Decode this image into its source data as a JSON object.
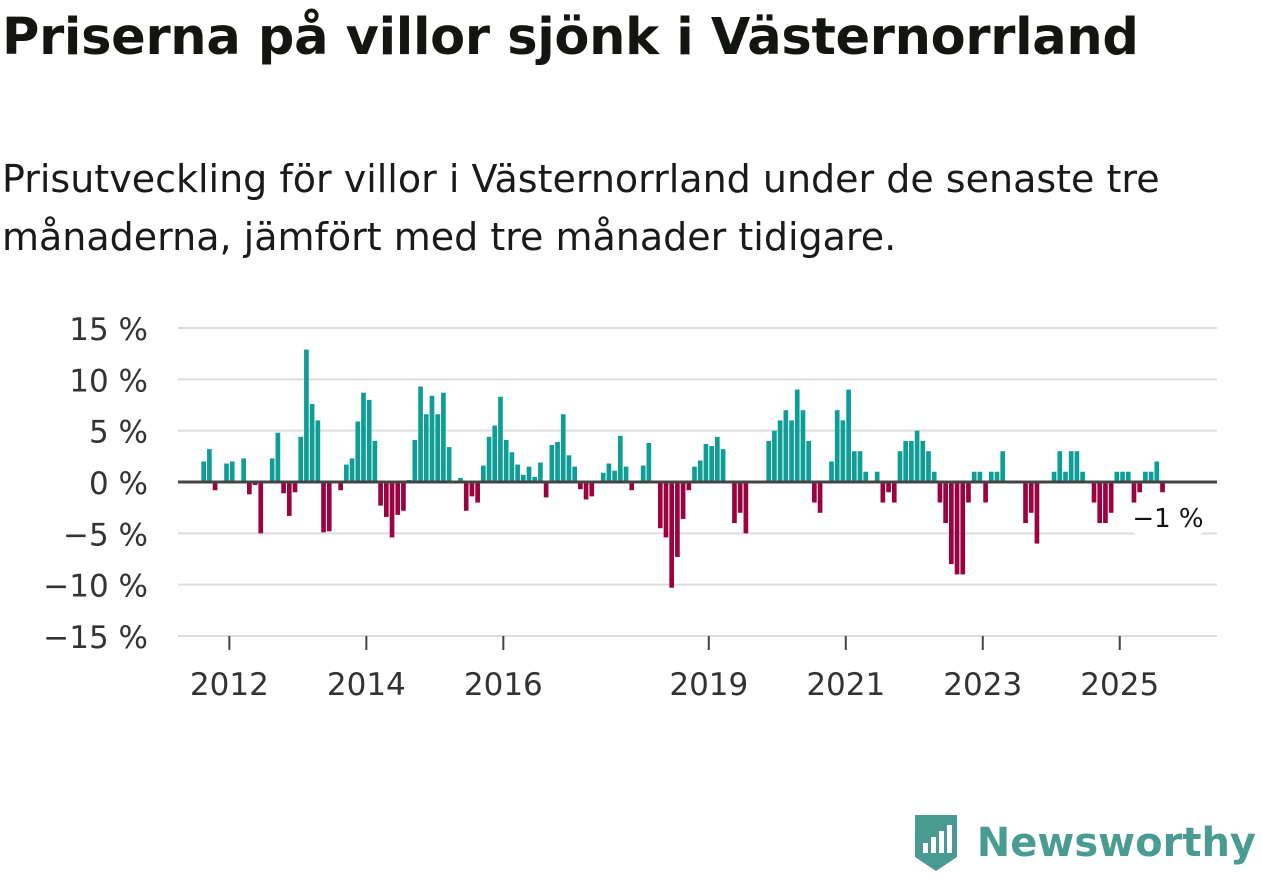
{
  "title": "Priserna på villor sjönk i Västernorrland",
  "subtitle": "Prisutveckling för villor i Västernorrland under de senaste tre månaderna, jämfört med tre månader tidigare.",
  "brand": "Newsworthy",
  "colors": {
    "positive": "#0e9e96",
    "negative": "#99033f",
    "grid": "#dddddd",
    "zero": "#444444",
    "brand": "#4a9c93",
    "text": "#333333"
  },
  "chart_data": {
    "type": "bar",
    "x_start": 2011.625,
    "x_step": 0.08333,
    "xlim": [
      2011.25,
      2026.42
    ],
    "ylim": [
      -15,
      15
    ],
    "y_ticks": [
      15,
      10,
      5,
      0,
      -5,
      -10,
      -15
    ],
    "y_tick_labels": [
      "15 %",
      "10 %",
      "5 %",
      "0 %",
      "−5 %",
      "−10 %",
      "−15 %"
    ],
    "x_ticks": [
      2012,
      2014,
      2016,
      2019,
      2021,
      2023,
      2025
    ],
    "x_tick_labels": [
      "2012",
      "2014",
      "2016",
      "2019",
      "2021",
      "2023",
      "2025"
    ],
    "annotation": "−1 %",
    "values": [
      2,
      3.2,
      -0.8,
      0,
      1.8,
      2,
      0,
      2.3,
      -1.2,
      -0.3,
      -5,
      0,
      2.3,
      4.8,
      -1.1,
      -3.3,
      -1,
      4.4,
      12.9,
      7.6,
      6,
      -4.9,
      -4.8,
      0,
      -0.8,
      1.7,
      2.3,
      5.9,
      8.7,
      8,
      4,
      -2.3,
      -3.4,
      -5.4,
      -3.2,
      -2.8,
      0.2,
      4.1,
      9.3,
      6.6,
      8.4,
      6.6,
      8.7,
      3.4,
      0,
      0.4,
      -2.8,
      -1.4,
      -2,
      1.6,
      4.4,
      5.5,
      8.3,
      4.1,
      2.9,
      1.7,
      0.7,
      1.5,
      0.5,
      1.9,
      -1.5,
      3.6,
      3.9,
      6.6,
      2.6,
      1.5,
      -0.7,
      -1.7,
      -1.4,
      0,
      0.9,
      1.8,
      1.1,
      4.5,
      1.5,
      -0.8,
      0,
      1.6,
      3.8,
      0,
      -4.5,
      -5.4,
      -10.3,
      -7.3,
      -3.6,
      -0.8,
      1.5,
      2.1,
      3.7,
      3.5,
      4.4,
      3.2,
      0,
      -4,
      -3,
      -5,
      0,
      0,
      0,
      4,
      5,
      6,
      7,
      6,
      9,
      7,
      4,
      -2,
      -3,
      0,
      2,
      7,
      6,
      9,
      3,
      3,
      1,
      0,
      1,
      -2,
      -1,
      -2,
      3,
      4,
      4,
      5,
      4,
      3,
      1,
      -2,
      -4,
      -8,
      -9,
      -9,
      -2,
      1,
      1,
      -2,
      1,
      1,
      3,
      0,
      0,
      0,
      -4,
      -3,
      -6,
      0,
      0,
      1,
      3,
      1,
      3,
      3,
      1,
      0,
      -2,
      -4,
      -4,
      -3,
      1,
      1,
      1,
      -2,
      -1,
      1,
      1,
      2,
      -1
    ]
  }
}
